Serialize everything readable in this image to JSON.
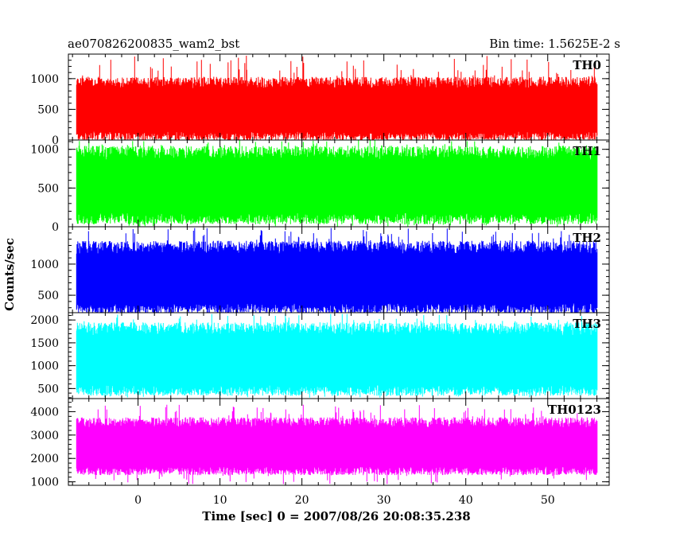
{
  "chart_data": {
    "type": "line",
    "title_left": "ae070826200835_wam2_bst",
    "title_right": "Bin time: 1.5625E-2 s",
    "xlabel": "Time [sec] 0 = 2007/08/26 20:08:35.238",
    "ylabel": "Counts/sec",
    "xlim": [
      -8.5,
      57.5
    ],
    "data_x_range": [
      -7.5,
      56
    ],
    "x_ticks": [
      0,
      10,
      20,
      30,
      40,
      50
    ],
    "x_tick_labels": [
      "0",
      "10",
      "20",
      "30",
      "40",
      "50"
    ],
    "panels": [
      {
        "name": "TH0",
        "color": "#ff0000",
        "ylim": [
          0,
          1400
        ],
        "y_ticks": [
          0,
          500,
          1000
        ],
        "y_tick_labels": [
          "0",
          "500",
          "1000"
        ],
        "band_low": 80,
        "band_high": 920,
        "spike_low": 0,
        "spike_high": 1380
      },
      {
        "name": "TH1",
        "color": "#00ff00",
        "ylim": [
          0,
          1120
        ],
        "y_ticks": [
          0,
          500,
          1000
        ],
        "y_tick_labels": [
          "0",
          "500",
          "1000"
        ],
        "band_low": 120,
        "band_high": 940,
        "spike_low": 0,
        "spike_high": 1120
      },
      {
        "name": "TH2",
        "color": "#0000ff",
        "ylim": [
          220,
          1600
        ],
        "y_ticks": [
          500,
          1000
        ],
        "y_tick_labels": [
          "500",
          "1000"
        ],
        "band_low": 300,
        "band_high": 1250,
        "spike_low": 240,
        "spike_high": 1580
      },
      {
        "name": "TH3",
        "color": "#00ffff",
        "ylim": [
          280,
          2160
        ],
        "y_ticks": [
          500,
          1000,
          1500,
          2000
        ],
        "y_tick_labels": [
          "500",
          "1000",
          "1500",
          "2000"
        ],
        "band_low": 480,
        "band_high": 1780,
        "spike_low": 300,
        "spike_high": 2140
      },
      {
        "name": "TH0123",
        "color": "#ff00ff",
        "ylim": [
          850,
          4560
        ],
        "y_ticks": [
          1000,
          2000,
          3000,
          4000
        ],
        "y_tick_labels": [
          "1000",
          "2000",
          "3000",
          "4000"
        ],
        "band_low": 1500,
        "band_high": 3500,
        "spike_low": 900,
        "spike_high": 4300
      }
    ]
  }
}
